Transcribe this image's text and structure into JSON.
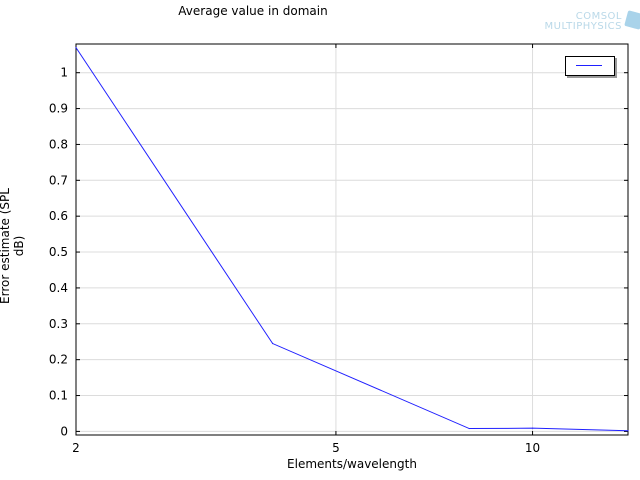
{
  "chart_data": {
    "type": "line",
    "title": "Average value in domain",
    "xlabel": "Elements/wavelength",
    "ylabel": "Error estimate (SPL dB)",
    "xscale": "log",
    "xlim": [
      2,
      14
    ],
    "ylim": [
      -0.01,
      1.08
    ],
    "xticks": [
      2,
      5,
      10
    ],
    "yticks": [
      0,
      0.1,
      0.2,
      0.3,
      0.4,
      0.5,
      0.6,
      0.7,
      0.8,
      0.9,
      1
    ],
    "grid": true,
    "legend": "top-right",
    "series": [
      {
        "color": "#2020ff",
        "x": [
          2,
          4,
          8,
          10,
          14
        ],
        "y": [
          1.07,
          0.245,
          0.008,
          0.009,
          0.002
        ]
      }
    ]
  },
  "logo": {
    "line1": "COMSOL",
    "line2": "MULTIPHYSICS"
  }
}
